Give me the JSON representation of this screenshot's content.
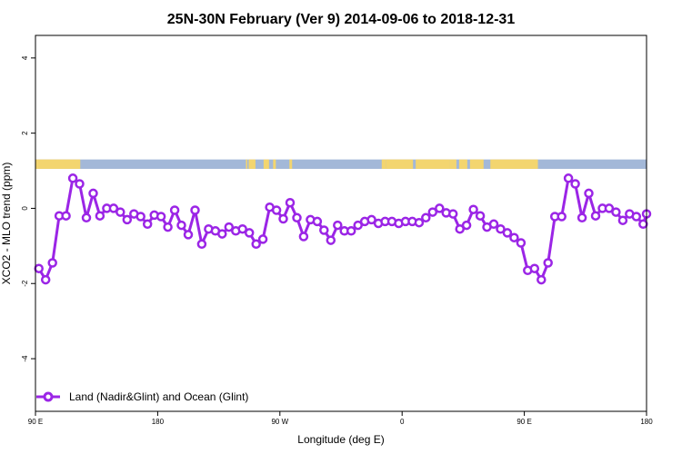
{
  "chart_data": {
    "type": "line",
    "title": "25N-30N February (Ver 9)   2014-09-06 to 2018-12-31",
    "xlabel": "Longitude (deg E)",
    "ylabel": "XCO2 - MLO trend (ppm)",
    "xlim": [
      90,
      540
    ],
    "ylim": [
      -5.4,
      4.6
    ],
    "x_ticks": [
      {
        "value": 90,
        "label": "90 E"
      },
      {
        "value": 180,
        "label": "180"
      },
      {
        "value": 270,
        "label": "90 W"
      },
      {
        "value": 360,
        "label": "0"
      },
      {
        "value": 450,
        "label": "90 E"
      },
      {
        "value": 540,
        "label": "180"
      }
    ],
    "y_ticks": [
      {
        "value": -4,
        "label": "-4"
      },
      {
        "value": -2,
        "label": "-2"
      },
      {
        "value": 0,
        "label": "0"
      },
      {
        "value": 2,
        "label": "2"
      },
      {
        "value": 4,
        "label": "4"
      }
    ],
    "land_ocean_strip": {
      "y_range": [
        1.05,
        1.3
      ],
      "ocean_color": "#a3b8d8",
      "land_color": "#f3d56f",
      "land_segments": [
        [
          90,
          123
        ],
        [
          245,
          246
        ],
        [
          247,
          252
        ],
        [
          258,
          262
        ],
        [
          265,
          267
        ],
        [
          277,
          279
        ],
        [
          345,
          348
        ],
        [
          348,
          368
        ],
        [
          370,
          395
        ],
        [
          395,
          400
        ],
        [
          402,
          408
        ],
        [
          410,
          420
        ],
        [
          425,
          460
        ]
      ]
    },
    "series": [
      {
        "name": "Land (Nadir&Glint) and Ocean (Glint)",
        "color": "#9b25e6",
        "x": [
          92.5,
          97.5,
          102.5,
          107.5,
          112.5,
          117.5,
          122.5,
          127.5,
          132.5,
          137.5,
          142.5,
          147.5,
          152.5,
          157.5,
          162.5,
          167.5,
          172.5,
          177.5,
          182.5,
          187.5,
          192.5,
          197.5,
          202.5,
          207.5,
          212.5,
          217.5,
          222.5,
          227.5,
          232.5,
          237.5,
          242.5,
          247.5,
          252.5,
          257.5,
          262.5,
          267.5,
          272.5,
          277.5,
          282.5,
          287.5,
          292.5,
          297.5,
          302.5,
          307.5,
          312.5,
          317.5,
          322.5,
          327.5,
          332.5,
          337.5,
          342.5,
          347.5,
          352.5,
          357.5,
          362.5,
          367.5,
          372.5,
          377.5,
          382.5,
          387.5,
          392.5,
          397.5,
          402.5,
          407.5,
          412.5,
          417.5,
          422.5,
          427.5,
          432.5,
          437.5,
          442.5,
          447.5,
          452.5,
          457.5,
          462.5,
          467.5,
          472.5,
          477.5,
          482.5,
          487.5,
          492.5,
          497.5,
          502.5,
          507.5,
          512.5,
          517.5,
          522.5,
          527.5,
          532.5,
          537.5
        ],
        "values": [
          -1.6,
          -1.9,
          -1.45,
          -0.2,
          -0.2,
          0.8,
          0.65,
          -0.25,
          0.4,
          -0.2,
          0.0,
          0.0,
          -0.1,
          -0.3,
          -0.15,
          -0.22,
          -0.42,
          -0.18,
          -0.22,
          -0.5,
          -0.05,
          -0.45,
          -0.7,
          -0.05,
          -0.95,
          -0.55,
          -0.6,
          -0.68,
          -0.5,
          -0.6,
          -0.55,
          -0.65,
          -0.95,
          -0.82,
          0.03,
          -0.05,
          -0.28,
          0.15,
          -0.25,
          -0.75,
          -0.3,
          -0.35,
          -0.58,
          -0.85,
          -0.45,
          -0.6,
          -0.6,
          -0.45,
          -0.35,
          -0.3,
          -0.4,
          -0.35,
          -0.35,
          -0.4,
          -0.35,
          -0.35,
          -0.38,
          -0.25,
          -0.1,
          0.0,
          -0.12,
          -0.15,
          -0.55,
          -0.45,
          -0.03,
          -0.2,
          -0.5,
          -0.42,
          -0.55,
          -0.65,
          -0.78,
          -0.92,
          -1.65,
          -1.6,
          -1.9,
          -1.45,
          -0.22,
          -0.22,
          0.8,
          0.65,
          -0.25,
          0.4,
          -0.2,
          0.0,
          0.0,
          -0.1,
          -0.32,
          -0.15,
          -0.22,
          -0.42
        ]
      }
    ],
    "legend": {
      "position": "bottom-left"
    },
    "grid": false
  },
  "extra_point": {
    "x": 540,
    "y": -0.15
  }
}
